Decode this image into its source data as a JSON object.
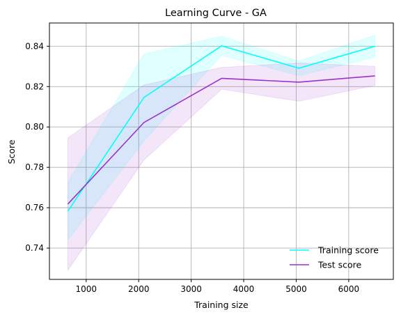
{
  "chart_data": {
    "type": "line",
    "title": "Learning Curve - GA",
    "xlabel": "Training size",
    "ylabel": "Score",
    "xlim": [
      300,
      6850
    ],
    "ylim": [
      0.7245,
      0.8515
    ],
    "xticks": [
      1000,
      2000,
      3000,
      4000,
      5000,
      6000
    ],
    "yticks": [
      0.74,
      0.76,
      0.78,
      0.8,
      0.82,
      0.84
    ],
    "ytick_labels": [
      "0.74",
      "0.76",
      "0.78",
      "0.80",
      "0.82",
      "0.84"
    ],
    "grid": true,
    "legend_position": "lower-right",
    "x": [
      650,
      2100,
      3580,
      5050,
      6500
    ],
    "series": [
      {
        "name": "Training score",
        "color": "#00ffff",
        "values": [
          0.7582,
          0.8146,
          0.8402,
          0.8291,
          0.84
        ],
        "band_lower": [
          0.744,
          0.793,
          0.8355,
          0.8255,
          0.8345
        ],
        "band_upper": [
          0.7725,
          0.8362,
          0.8449,
          0.8327,
          0.8455
        ]
      },
      {
        "name": "Test score",
        "color": "#9932cc",
        "values": [
          0.7618,
          0.8022,
          0.8241,
          0.8222,
          0.8253
        ],
        "band_lower": [
          0.729,
          0.7836,
          0.8187,
          0.8127,
          0.8206
        ],
        "band_upper": [
          0.7946,
          0.8208,
          0.8295,
          0.8317,
          0.83
        ]
      }
    ]
  }
}
